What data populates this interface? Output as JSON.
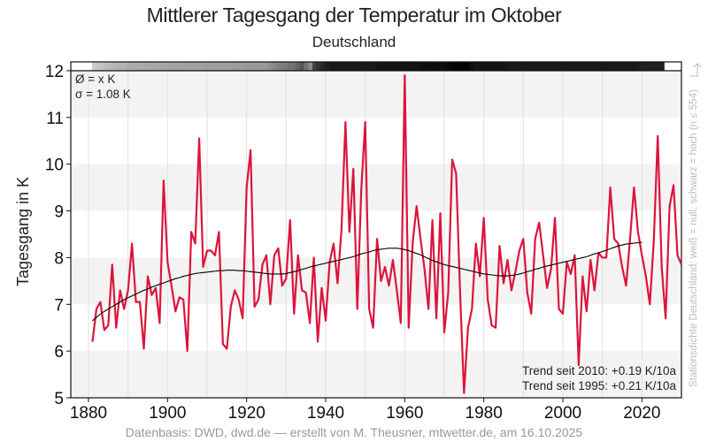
{
  "chart_data": {
    "type": "line",
    "title": "Mittlerer Tagesgang der Temperatur im Oktober",
    "subtitle": "Deutschland",
    "xlabel": "",
    "ylabel": "Tagesgang in K",
    "xlim": [
      1875,
      2030
    ],
    "ylim": [
      5,
      12
    ],
    "x_ticks": [
      1880,
      1900,
      1920,
      1940,
      1960,
      1980,
      2000,
      2020
    ],
    "y_ticks": [
      5,
      6,
      7,
      8,
      9,
      10,
      11,
      12
    ],
    "grid": true,
    "series": [
      {
        "name": "Tagesgang",
        "color": "#dc143c",
        "x_start": 1881,
        "values": [
          6.2,
          6.9,
          7.05,
          6.45,
          6.55,
          7.85,
          6.5,
          7.3,
          6.9,
          7.3,
          8.3,
          7.05,
          7.05,
          6.05,
          7.6,
          7.2,
          7.35,
          6.6,
          9.65,
          7.9,
          7.4,
          6.85,
          7.15,
          7.1,
          6.0,
          8.55,
          8.3,
          10.55,
          7.8,
          8.15,
          8.15,
          8.05,
          8.55,
          6.15,
          6.05,
          6.95,
          7.3,
          7.1,
          6.7,
          9.5,
          10.3,
          6.95,
          7.1,
          7.85,
          8.05,
          7.0,
          8.05,
          8.2,
          7.4,
          7.55,
          8.8,
          6.8,
          8.05,
          7.3,
          7.25,
          6.6,
          8.0,
          6.2,
          7.35,
          6.65,
          7.9,
          8.3,
          7.45,
          8.6,
          10.9,
          8.55,
          9.9,
          6.9,
          9.45,
          10.9,
          6.9,
          6.5,
          8.4,
          7.5,
          7.8,
          7.4,
          7.95,
          7.3,
          6.6,
          11.9,
          6.5,
          8.3,
          9.1,
          8.4,
          7.75,
          6.9,
          8.8,
          6.7,
          8.95,
          6.4,
          7.25,
          10.1,
          9.8,
          7.25,
          5.1,
          6.5,
          6.9,
          8.3,
          7.6,
          8.85,
          7.1,
          6.55,
          6.5,
          8.25,
          7.45,
          7.95,
          7.3,
          7.7,
          8.15,
          8.4,
          7.25,
          6.8,
          8.4,
          8.75,
          8.05,
          7.35,
          7.75,
          8.85,
          6.9,
          6.8,
          7.9,
          7.65,
          8.05,
          5.7,
          7.6,
          6.85,
          7.95,
          7.3,
          8.1,
          8.0,
          8.0,
          9.5,
          8.4,
          8.3,
          7.8,
          7.4,
          8.4,
          9.5,
          8.55,
          8.05,
          7.6,
          7.0,
          8.35,
          10.6,
          7.8,
          6.7,
          9.1,
          9.55,
          8.05,
          7.85
        ]
      },
      {
        "name": "Gleitender Mittelwert",
        "color": "#000000",
        "x_start": 1881,
        "values": [
          6.65,
          6.72,
          6.79,
          6.85,
          6.9,
          6.95,
          7.0,
          7.05,
          7.1,
          7.14,
          7.18,
          7.22,
          7.26,
          7.3,
          7.33,
          7.37,
          7.4,
          7.43,
          7.46,
          7.49,
          7.52,
          7.55,
          7.57,
          7.6,
          7.62,
          7.64,
          7.66,
          7.67,
          7.68,
          7.69,
          7.7,
          7.71,
          7.72,
          7.72,
          7.73,
          7.73,
          7.73,
          7.72,
          7.72,
          7.71,
          7.7,
          7.69,
          7.68,
          7.67,
          7.66,
          7.65,
          7.65,
          7.65,
          7.65,
          7.66,
          7.68,
          7.7,
          7.72,
          7.75,
          7.77,
          7.8,
          7.82,
          7.84,
          7.86,
          7.88,
          7.9,
          7.92,
          7.94,
          7.96,
          7.98,
          8.0,
          8.02,
          8.05,
          8.08,
          8.1,
          8.12,
          8.15,
          8.17,
          8.18,
          8.19,
          8.2,
          8.2,
          8.2,
          8.19,
          8.17,
          8.15,
          8.12,
          8.09,
          8.06,
          8.02,
          7.98,
          7.94,
          7.91,
          7.88,
          7.85,
          7.83,
          7.81,
          7.79,
          7.77,
          7.75,
          7.73,
          7.71,
          7.69,
          7.67,
          7.65,
          7.64,
          7.63,
          7.62,
          7.61,
          7.61,
          7.61,
          7.62,
          7.63,
          7.65,
          7.67,
          7.7,
          7.72,
          7.75,
          7.77,
          7.8,
          7.82,
          7.84,
          7.86,
          7.88,
          7.9,
          7.92,
          7.94,
          7.96,
          7.98,
          8.0,
          8.02,
          8.05,
          8.08,
          8.1,
          8.13,
          8.16,
          8.19,
          8.22,
          8.25,
          8.27,
          8.29,
          8.3,
          8.31,
          8.32,
          8.33
        ]
      }
    ],
    "station_density_note": "Stationsdichte Deutschland: weiß = null, schwarz = hoch (n ≤ 554)",
    "station_density_arrow": "←",
    "station_density_strip": [
      0.0,
      0.0,
      0.0,
      0.0,
      0.0,
      0.2,
      0.22,
      0.24,
      0.26,
      0.28,
      0.3,
      0.3,
      0.3,
      0.32,
      0.32,
      0.33,
      0.33,
      0.34,
      0.34,
      0.34,
      0.35,
      0.35,
      0.35,
      0.36,
      0.36,
      0.36,
      0.36,
      0.37,
      0.37,
      0.37,
      0.37,
      0.38,
      0.38,
      0.38,
      0.38,
      0.38,
      0.38,
      0.38,
      0.39,
      0.39,
      0.39,
      0.4,
      0.4,
      0.4,
      0.4,
      0.4,
      0.42,
      0.45,
      0.48,
      0.5,
      0.52,
      0.55,
      0.55,
      0.6,
      0.65,
      0.55,
      0.45,
      0.75,
      0.8,
      0.85,
      0.88,
      0.9,
      0.9,
      0.9,
      0.9,
      0.9,
      0.9,
      0.9,
      0.9,
      0.9,
      0.9,
      0.9,
      0.92,
      0.92,
      0.92,
      0.92,
      0.92,
      0.92,
      0.93,
      0.93,
      0.93,
      0.93,
      0.94,
      0.94,
      0.94,
      0.95,
      0.95,
      0.95,
      0.96,
      0.97,
      0.98,
      0.98,
      0.99,
      0.99,
      0.95,
      0.92,
      0.92,
      0.92,
      0.92,
      0.92,
      0.92,
      0.92,
      0.92,
      0.9,
      0.9,
      0.9,
      0.9,
      0.9,
      0.9,
      0.9,
      0.9,
      0.9,
      0.9,
      0.9,
      0.9,
      0.9,
      0.9,
      0.9,
      0.9,
      0.9,
      0.9,
      0.9,
      0.9,
      0.9,
      0.9,
      0.9,
      0.9,
      0.9,
      0.9,
      0.9,
      0.9,
      0.9,
      0.9,
      0.9,
      0.88,
      0.88,
      0.88,
      0.88,
      0.88,
      0.88,
      0.0,
      0.0,
      0.0,
      0.0
    ]
  },
  "annotations": {
    "mean": "Ø = x K",
    "sigma": "σ = 1.08 K",
    "trend1": "Trend seit 2010: +0.19 K/10a",
    "trend2": "Trend seit 1995: +0.21 K/10a"
  },
  "footer": "Datenbasis: DWD, dwd.de — erstellt von M. Theusner, mtwetter.de, am 16.10.2025"
}
